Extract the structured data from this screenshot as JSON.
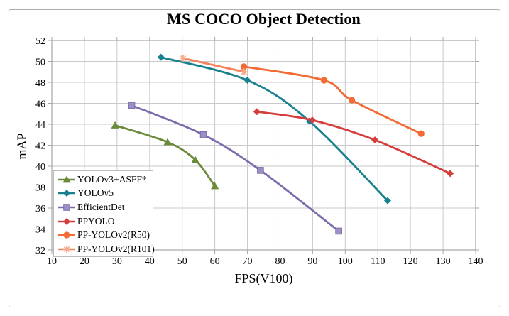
{
  "chart_data": {
    "type": "line",
    "title": "MS COCO Object Detection",
    "xlabel": "FPS(V100)",
    "ylabel": "mAP",
    "xlim": [
      10,
      140
    ],
    "ylim": [
      32,
      52
    ],
    "xticks": [
      10,
      20,
      30,
      40,
      50,
      60,
      70,
      80,
      90,
      100,
      110,
      120,
      130,
      140
    ],
    "yticks": [
      32,
      34,
      36,
      38,
      40,
      42,
      44,
      46,
      48,
      50,
      52
    ],
    "grid": true,
    "smoothed_lines": true,
    "legend_position": "inside-bottom-left",
    "colors": {
      "grid": "#c9c9c9",
      "frame": "#a6a6a6",
      "tick": "#a6a6a6",
      "legend_border": "#bdbdbd",
      "background": "#ffffff",
      "text": "#000000",
      "outer_border": "#adadad"
    },
    "series": [
      {
        "name": "YOLOv3+ASFF*",
        "color": "#6c8a3a",
        "marker": "triangle",
        "marker_color": "#6c8a3a",
        "points": [
          [
            29.4,
            43.9
          ],
          [
            45.5,
            42.3
          ],
          [
            54,
            40.6
          ],
          [
            60,
            38.1
          ]
        ]
      },
      {
        "name": "YOLOv5",
        "color": "#18818f",
        "marker": "diamond",
        "marker_color": "#18818f",
        "points": [
          [
            43.5,
            50.4
          ],
          [
            70,
            48.2
          ],
          [
            89,
            44.3
          ],
          [
            113,
            36.7
          ]
        ]
      },
      {
        "name": "EfficientDet",
        "color": "#7d6bac",
        "marker": "square",
        "marker_color": "#9d8ec4",
        "marker_edge": "#7d6bac",
        "points": [
          [
            34.5,
            45.8
          ],
          [
            56.5,
            43.0
          ],
          [
            74,
            39.6
          ],
          [
            98,
            33.8
          ]
        ]
      },
      {
        "name": "PPYOLO",
        "color": "#d63e3e",
        "marker": "diamond",
        "marker_color": "#d63e3e",
        "points": [
          [
            72.9,
            45.2
          ],
          [
            89.9,
            44.4
          ],
          [
            109.1,
            42.5
          ],
          [
            132.2,
            39.3
          ]
        ]
      },
      {
        "name": "PP-YOLOv2(R50)",
        "color": "#f26a34",
        "marker": "circle",
        "marker_color": "#f26a34",
        "points": [
          [
            68.9,
            49.5
          ],
          [
            93.5,
            48.2
          ],
          [
            102,
            46.3
          ],
          [
            123.3,
            43.1
          ]
        ]
      },
      {
        "name": "PP-YOLOv2(R101)",
        "color": "#f58158",
        "marker": "asterisk",
        "marker_color": "#f9a88b",
        "points": [
          [
            50.3,
            50.3
          ],
          [
            69,
            49.0
          ]
        ]
      }
    ]
  }
}
